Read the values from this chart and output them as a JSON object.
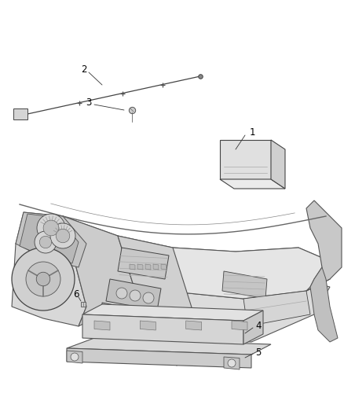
{
  "bg_color": "#ffffff",
  "fig_width": 4.38,
  "fig_height": 5.33,
  "dpi": 100,
  "line_color": "#555555",
  "line_color_dark": "#333333",
  "fill_light": "#f0f0f0",
  "fill_mid": "#e0e0e0",
  "fill_dark": "#c8c8c8",
  "label_fontsize": 8.5,
  "label_color": "#000000"
}
